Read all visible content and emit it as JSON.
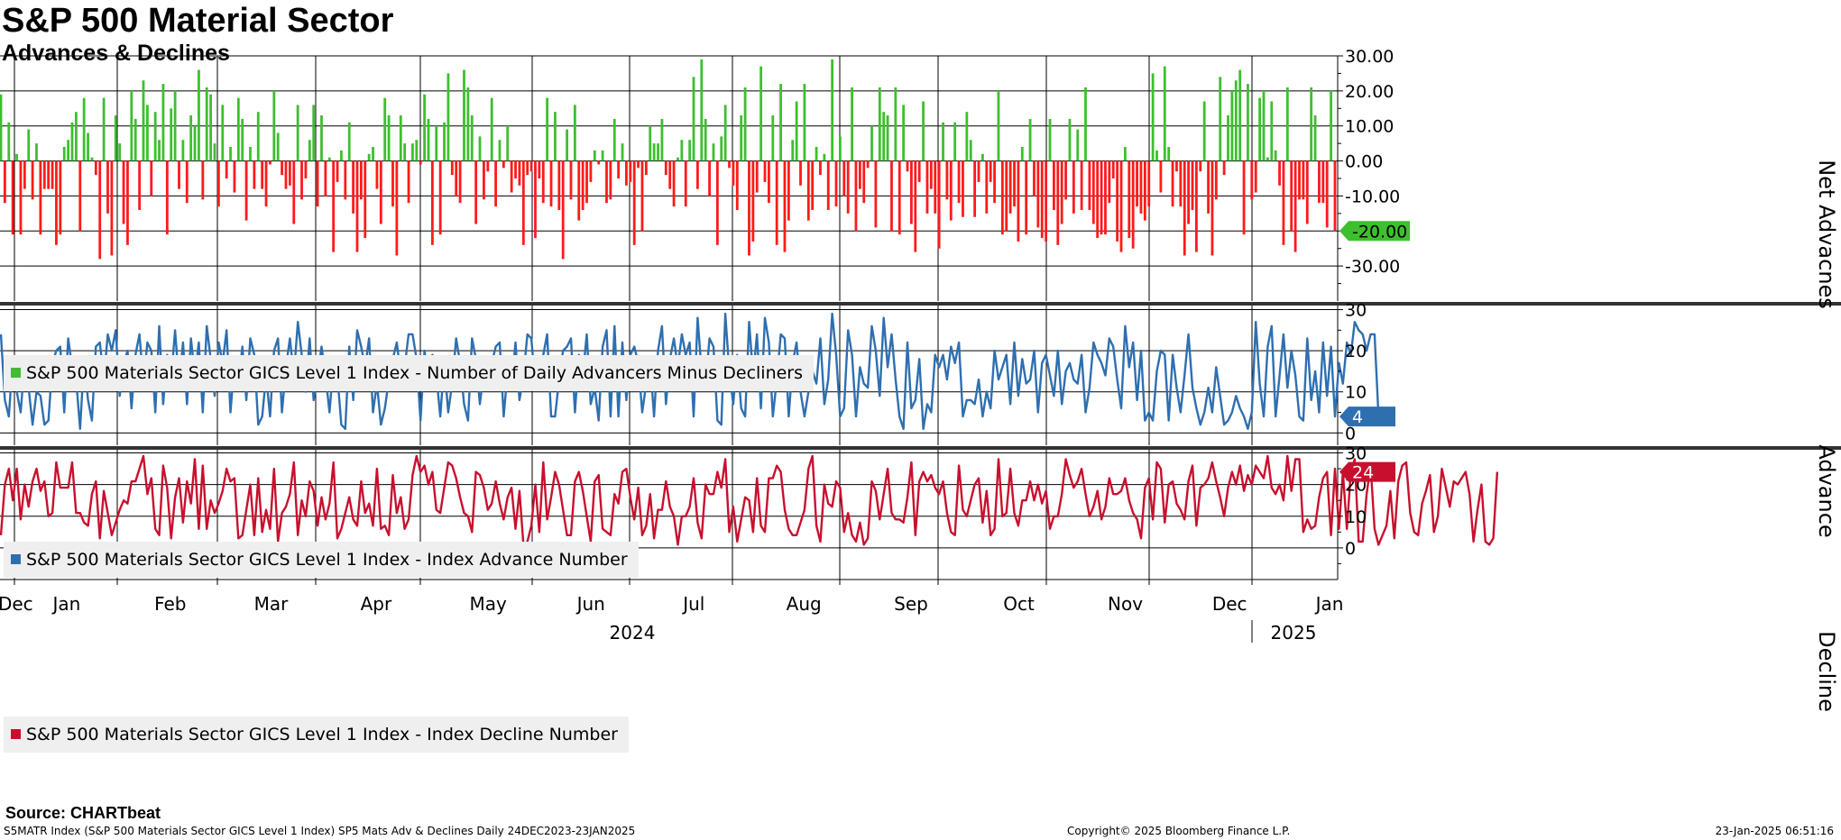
{
  "title": "S&P 500 Material Sector",
  "subtitle": "Advances & Declines",
  "source": "Source: CHARTbeat",
  "footer": {
    "left": "S5MATR Index (S&P 500 Materials Sector GICS Level 1 Index) SP5 Mats Adv & Declines  Daily 24DEC2023-23JAN2025",
    "center": "Copyright© 2025 Bloomberg Finance L.P.",
    "right": "23-Jan-2025 06:51:16"
  },
  "colors": {
    "net_pos": "#3dbf2e",
    "net_neg": "#ff1a1a",
    "advance": "#2e6fb0",
    "decline": "#c8102e",
    "grid": "#000000"
  },
  "chart_data": [
    {
      "type": "bar",
      "name": "net",
      "title": "Net Advances",
      "ylabel": "Net Advacnes",
      "legend": "S&P 500 Materials Sector GICS Level 1 Index - Number of Daily Advancers Minus Decliners",
      "ylim": [
        -40,
        30
      ],
      "yticks": [
        "30.00",
        "20.00",
        "10.00",
        "0.00",
        "-10.00",
        "-20.00",
        "-30.00"
      ],
      "last_value": -20,
      "last_label": "-20.00",
      "values": [
        19,
        -12,
        11,
        -21,
        2,
        -21,
        -8,
        9,
        -11,
        5,
        -21,
        -8,
        -8,
        -8,
        -24,
        -21,
        4,
        6,
        11,
        14,
        -20,
        18,
        8,
        1,
        -4,
        -28,
        18,
        -15,
        -27,
        13,
        5,
        -18,
        -24,
        20,
        12,
        -14,
        23,
        16,
        -10,
        14,
        6,
        22,
        -21,
        15,
        20,
        -8,
        6,
        -12,
        13,
        10,
        26,
        -11,
        21,
        19,
        5,
        -13,
        16,
        -5,
        4,
        -9,
        18,
        12,
        -17,
        4,
        -8,
        14,
        -8,
        -13,
        -1,
        20,
        8,
        -4,
        -8,
        -7,
        -18,
        16,
        -11,
        -5,
        6,
        16,
        -13,
        13,
        -10,
        1,
        -26,
        -6,
        3,
        -11,
        11,
        -15,
        -26,
        -11,
        -22,
        2,
        4,
        -8,
        -18,
        18,
        13,
        -13,
        -27,
        13,
        5,
        -12,
        5,
        6,
        -1,
        19,
        12,
        -24,
        10,
        -21,
        11,
        25,
        -4,
        -10,
        -12,
        26,
        21,
        13,
        -18,
        7,
        -11,
        -3,
        18,
        -13,
        6,
        -2,
        10,
        -9,
        -5,
        -7,
        -24,
        -4,
        -3,
        -22,
        -5,
        -12,
        18,
        -13,
        14,
        -14,
        -28,
        9,
        -11,
        16,
        -17,
        -14,
        -12,
        -6,
        3,
        -1,
        3,
        -12,
        -11,
        12,
        -5,
        5,
        -7,
        -6,
        -24,
        -2,
        -20,
        -4,
        10,
        5,
        5,
        12,
        -4,
        -8,
        -13,
        1,
        6,
        -13,
        6,
        24,
        -8,
        29,
        12,
        -10,
        5,
        -24,
        7,
        16,
        -2,
        -7,
        -14,
        13,
        21,
        -27,
        -23,
        -9,
        27,
        -6,
        -12,
        13,
        -24,
        22,
        -26,
        -17,
        6,
        17,
        -7,
        22,
        -17,
        -14,
        4,
        -4,
        2,
        -14,
        29,
        -13,
        7,
        -10,
        -15,
        21,
        -20,
        -8,
        -12,
        -2,
        10,
        -19,
        21,
        14,
        13,
        -20,
        21,
        -21,
        16,
        -3,
        -18,
        -26,
        -6,
        17,
        -15,
        -8,
        -15,
        -25,
        11,
        -11,
        -17,
        11,
        -12,
        -16,
        14,
        6,
        -16,
        -6,
        2,
        -15,
        -6,
        -12,
        20,
        -21,
        -20,
        -15,
        -13,
        -23,
        4,
        -21,
        12,
        -10,
        -19,
        -22,
        -23,
        12,
        -14,
        -24,
        -18,
        -11,
        12,
        -15,
        9,
        -14,
        21,
        -14,
        -18,
        -22,
        -21,
        -21,
        -12,
        -5,
        -23,
        -26,
        4,
        -22,
        -25,
        -13,
        -15,
        -17,
        -13,
        25,
        3,
        -9,
        27,
        4,
        -13,
        -3,
        -13,
        -27,
        -18,
        -14,
        -26,
        -3,
        17,
        -15,
        -27,
        -11,
        24,
        -4,
        13,
        20,
        23,
        26,
        -21,
        22,
        -11,
        -9,
        18,
        20,
        1,
        17,
        3,
        -7,
        -24,
        21,
        -20,
        -26,
        -11,
        -11,
        -18,
        21,
        13,
        -12,
        -12,
        -19,
        20,
        -20
      ]
    },
    {
      "type": "line",
      "name": "advance",
      "title": "Index Advance Number",
      "ylabel": "Advance",
      "legend": "S&P 500 Materials Sector GICS Level 1 Index - Index Advance Number",
      "ylim": [
        -3,
        31
      ],
      "yticks": [
        "30",
        "20",
        "10",
        "0"
      ],
      "last_value": 4,
      "last_label": "4",
      "values": [
        24,
        8,
        4,
        18,
        10,
        5,
        17,
        11,
        2,
        10,
        9,
        2,
        3,
        17,
        20,
        21,
        5,
        23,
        16,
        13,
        1,
        18,
        8,
        3,
        21,
        22,
        13,
        24,
        20,
        25,
        9,
        17,
        20,
        6,
        19,
        24,
        12,
        22,
        20,
        5,
        26,
        7,
        19,
        13,
        25,
        12,
        22,
        7,
        23,
        14,
        22,
        5,
        26,
        18,
        9,
        22,
        17,
        25,
        5,
        17,
        12,
        21,
        8,
        23,
        19,
        2,
        4,
        14,
        4,
        20,
        23,
        5,
        16,
        23,
        14,
        27,
        19,
        10,
        23,
        8,
        14,
        21,
        14,
        5,
        17,
        14,
        2,
        1,
        21,
        8,
        25,
        21,
        16,
        23,
        5,
        12,
        2,
        6,
        13,
        18,
        22,
        14,
        16,
        24,
        24,
        18,
        3,
        20,
        13,
        19,
        14,
        4,
        17,
        5,
        12,
        23,
        17,
        7,
        3,
        23,
        18,
        7,
        15,
        14,
        17,
        21,
        22,
        4,
        15,
        11,
        22,
        8,
        14,
        24,
        23,
        11,
        17,
        19,
        24,
        4,
        4,
        13,
        20,
        21,
        23,
        5,
        19,
        14,
        24,
        7,
        11,
        3,
        21,
        25,
        4,
        26,
        4,
        22,
        8,
        19,
        21,
        17,
        5,
        12,
        17,
        4,
        20,
        26,
        7,
        18,
        23,
        16,
        24,
        19,
        22,
        4,
        28,
        15,
        12,
        23,
        21,
        3,
        2,
        29,
        15,
        7,
        19,
        6,
        4,
        27,
        14,
        24,
        6,
        28,
        22,
        4,
        13,
        24,
        23,
        4,
        17,
        22,
        10,
        4,
        10,
        15,
        12,
        23,
        7,
        13,
        29,
        19,
        4,
        6,
        25,
        19,
        4,
        16,
        12,
        11,
        26,
        20,
        9,
        28,
        16,
        24,
        13,
        4,
        1,
        22,
        6,
        8,
        18,
        1,
        7,
        5,
        19,
        16,
        19,
        13,
        21,
        17,
        22,
        4,
        8,
        8,
        7,
        13,
        4,
        10,
        6,
        20,
        13,
        16,
        19,
        7,
        22,
        9,
        18,
        12,
        13,
        20,
        5,
        17,
        19,
        14,
        9,
        20,
        7,
        15,
        17,
        13,
        12,
        19,
        5,
        11,
        22,
        19,
        17,
        14,
        23,
        21,
        13,
        6,
        26,
        16,
        22,
        8,
        20,
        3,
        5,
        3,
        15,
        20,
        19,
        3,
        19,
        11,
        5,
        14,
        24,
        11,
        6,
        2,
        5,
        11,
        5,
        16,
        9,
        2,
        3,
        5,
        9,
        6,
        4,
        1,
        5,
        27,
        12,
        4,
        21,
        26,
        4,
        14,
        24,
        11,
        20,
        14,
        4,
        3,
        23,
        8,
        15,
        5,
        22,
        9,
        21,
        4,
        17,
        12,
        22,
        19,
        27,
        25,
        24,
        20,
        24,
        24,
        4
      ]
    },
    {
      "type": "line",
      "name": "decline",
      "title": "Index Decline Number",
      "ylabel": "Decline",
      "legend": "S&P 500 Materials Sector GICS Level 1 Index - Index Decline Number",
      "ylim": [
        -10,
        31
      ],
      "yticks": [
        "30",
        "20",
        "10",
        "0"
      ],
      "last_value": 24,
      "last_label": "24",
      "values": [
        4,
        20,
        25,
        15,
        25,
        9,
        20,
        13,
        21,
        25,
        18,
        21,
        10,
        11,
        27,
        19,
        19,
        19,
        27,
        11,
        11,
        8,
        7,
        17,
        21,
        3,
        18,
        11,
        4,
        8,
        12,
        15,
        14,
        21,
        21,
        25,
        29,
        17,
        22,
        6,
        4,
        26,
        19,
        3,
        16,
        22,
        8,
        21,
        14,
        28,
        6,
        26,
        6,
        15,
        11,
        14,
        18,
        25,
        21,
        22,
        3,
        4,
        12,
        20,
        4,
        22,
        5,
        12,
        6,
        25,
        2,
        11,
        13,
        17,
        27,
        4,
        15,
        10,
        21,
        18,
        7,
        16,
        9,
        14,
        27,
        3,
        6,
        11,
        16,
        9,
        7,
        21,
        11,
        14,
        7,
        25,
        6,
        7,
        4,
        23,
        11,
        16,
        6,
        9,
        23,
        29,
        24,
        26,
        20,
        24,
        12,
        11,
        19,
        27,
        26,
        22,
        16,
        11,
        10,
        5,
        24,
        23,
        19,
        12,
        14,
        21,
        14,
        9,
        16,
        19,
        6,
        18,
        1,
        2,
        7,
        20,
        5,
        27,
        9,
        16,
        24,
        20,
        12,
        4,
        4,
        21,
        24,
        18,
        10,
        2,
        21,
        23,
        6,
        5,
        4,
        17,
        14,
        24,
        25,
        16,
        9,
        19,
        4,
        7,
        17,
        3,
        12,
        12,
        21,
        13,
        10,
        1,
        10,
        10,
        13,
        22,
        8,
        3,
        20,
        17,
        17,
        24,
        19,
        28,
        5,
        13,
        2,
        9,
        16,
        15,
        5,
        22,
        7,
        5,
        22,
        22,
        26,
        24,
        12,
        6,
        4,
        4,
        8,
        12,
        25,
        29,
        7,
        2,
        20,
        14,
        13,
        21,
        19,
        5,
        11,
        4,
        2,
        8,
        1,
        3,
        21,
        18,
        9,
        17,
        25,
        11,
        9,
        9,
        8,
        16,
        27,
        4,
        21,
        24,
        21,
        23,
        19,
        17,
        21,
        11,
        5,
        4,
        26,
        12,
        10,
        15,
        20,
        22,
        8,
        18,
        4,
        6,
        28,
        10,
        11,
        25,
        11,
        7,
        15,
        15,
        21,
        15,
        20,
        14,
        18,
        6,
        10,
        10,
        17,
        28,
        23,
        19,
        21,
        25,
        17,
        10,
        13,
        18,
        9,
        13,
        22,
        17,
        17,
        18,
        22,
        15,
        11,
        9,
        3,
        19,
        22,
        9,
        27,
        25,
        8,
        20,
        21,
        14,
        12,
        9,
        21,
        26,
        7,
        19,
        20,
        22,
        27,
        21,
        16,
        10,
        19,
        24,
        20,
        26,
        18,
        23,
        20,
        26,
        24,
        22,
        29,
        19,
        17,
        20,
        15,
        29,
        18,
        28,
        28,
        5,
        9,
        6,
        7,
        16,
        22,
        24,
        4,
        25,
        6,
        24,
        6,
        24,
        28,
        2,
        2,
        17,
        26,
        6,
        1,
        4,
        7,
        18,
        3,
        21,
        26,
        27,
        11,
        5,
        4,
        14,
        18,
        23,
        5,
        10,
        25,
        19,
        13,
        21,
        20,
        22,
        24,
        17,
        2,
        12,
        20,
        2,
        1,
        3,
        24
      ]
    }
  ],
  "x_axis": {
    "months": [
      "Dec",
      "Jan",
      "Feb",
      "Mar",
      "Apr",
      "May",
      "Jun",
      "Jul",
      "Aug",
      "Sep",
      "Oct",
      "Nov",
      "Dec",
      "Jan"
    ],
    "years": [
      "2024",
      "2025"
    ]
  }
}
